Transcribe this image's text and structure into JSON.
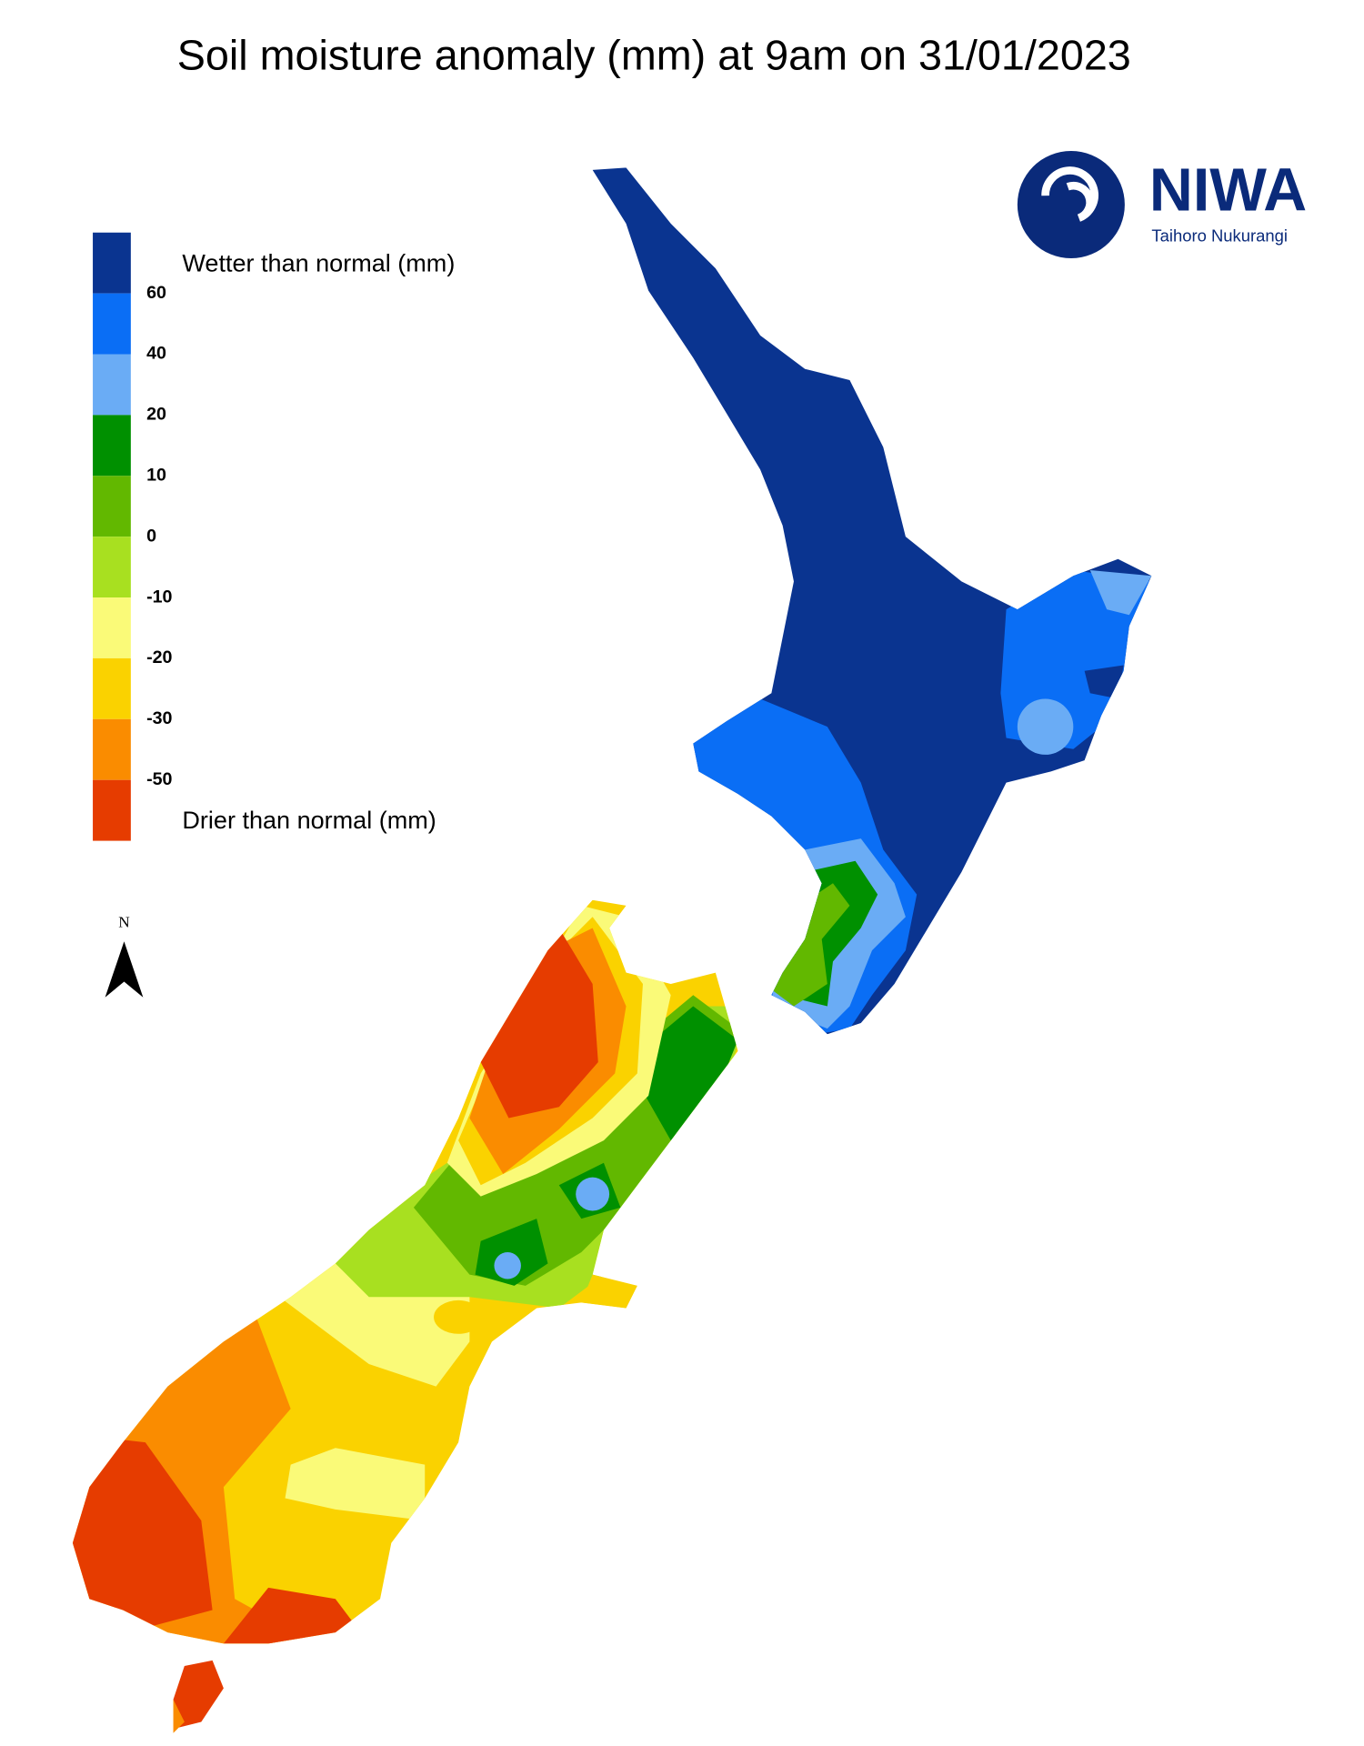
{
  "title": "Soil moisture anomaly (mm) at 9am on 31/01/2023",
  "legend": {
    "top_label": "Wetter than normal (mm)",
    "bottom_label": "Drier than normal (mm)",
    "ticks": [
      60,
      40,
      20,
      10,
      0,
      -10,
      -20,
      -30,
      -50
    ],
    "colors": [
      "#0a3490",
      "#0a6ef5",
      "#6aacf5",
      "#009000",
      "#62b800",
      "#a8e020",
      "#fafa78",
      "#fad200",
      "#fa8c00",
      "#e63c00"
    ]
  },
  "logo": {
    "name": "NIWA",
    "subtitle": "Taihoro Nukurangi"
  },
  "north_label": "N"
}
